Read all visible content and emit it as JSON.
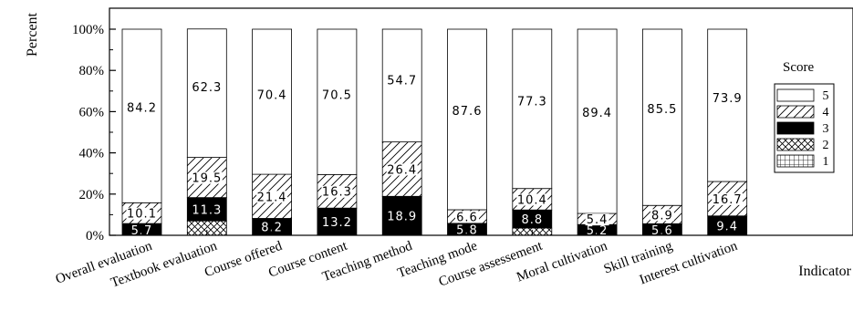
{
  "chart_data": {
    "type": "bar",
    "stacked": true,
    "ylabel": "Percent",
    "xlabel": "Indicator",
    "ylim": [
      0,
      100
    ],
    "yticks": [
      "0%",
      "20%",
      "40%",
      "60%",
      "80%",
      "100%"
    ],
    "categories": [
      "Overall evaluation",
      "Textbook evaluation",
      "Course offered",
      "Course content",
      "Teaching method",
      "Teaching mode",
      "Course assessement",
      "Moral cultivation",
      "Skill training",
      "Interest cultivation"
    ],
    "series": [
      {
        "name": "1",
        "pattern": "grid",
        "values": [
          0,
          0,
          0,
          0,
          0,
          0,
          0,
          0,
          0,
          0
        ]
      },
      {
        "name": "2",
        "pattern": "cross",
        "values": [
          0,
          7,
          0,
          0,
          0,
          0,
          3.5,
          0,
          0,
          0
        ]
      },
      {
        "name": "3",
        "pattern": "solid",
        "values": [
          5.7,
          11.3,
          8.2,
          13.2,
          18.9,
          5.8,
          8.8,
          5.2,
          5.6,
          9.4
        ]
      },
      {
        "name": "4",
        "pattern": "hatch",
        "values": [
          10.1,
          19.5,
          21.4,
          16.3,
          26.4,
          6.6,
          10.4,
          5.4,
          8.9,
          16.7
        ]
      },
      {
        "name": "5",
        "pattern": "white",
        "values": [
          84.2,
          62.3,
          70.4,
          70.5,
          54.7,
          87.6,
          77.3,
          89.4,
          85.5,
          73.9
        ]
      }
    ],
    "data_labels": {
      "3": [
        "5.7",
        "11.3",
        "8.2",
        "13.2",
        "18.9",
        "5.8",
        "8.8",
        "5.2",
        "5.6",
        "9.4"
      ],
      "4": [
        "10.1",
        "19.5",
        "21.4",
        "16.3",
        "26.4",
        "6.6",
        "10.4",
        "5.4",
        "8.9",
        "16.7"
      ],
      "5": [
        "84.2",
        "62.3",
        "70.4",
        "70.5",
        "54.7",
        "87.6",
        "77.3",
        "89.4",
        "85.5",
        "73.9"
      ]
    },
    "legend": {
      "title": "Score",
      "placement": "right",
      "order": [
        "5",
        "4",
        "3",
        "2",
        "1"
      ]
    }
  }
}
